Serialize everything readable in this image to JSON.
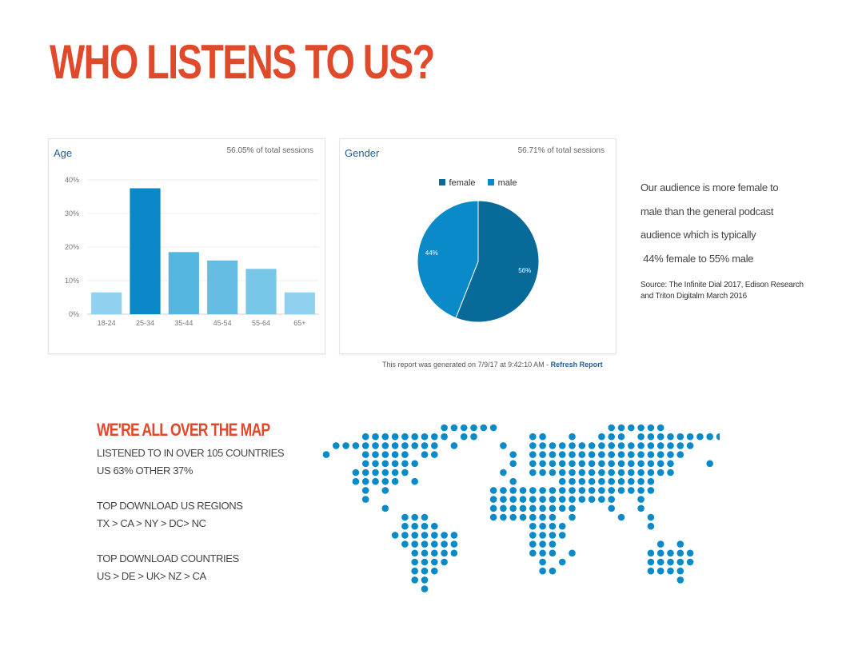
{
  "title": "WHO LISTENS TO US?",
  "age_card": {
    "title": "Age",
    "sessions": "56.05% of total sessions"
  },
  "gender_card": {
    "title": "Gender",
    "sessions": "56.71% of total sessions"
  },
  "chart_data": [
    {
      "type": "bar",
      "title": "Age",
      "categories": [
        "18-24",
        "25-34",
        "35-44",
        "45-54",
        "55-64",
        "65+"
      ],
      "values": [
        6.5,
        37.5,
        18.5,
        16,
        13.5,
        6.5
      ],
      "yticks": [
        "0%",
        "10%",
        "20%",
        "30%",
        "40%"
      ],
      "ylim": [
        0,
        40
      ],
      "grid": true,
      "colors": [
        "#8fd1ef",
        "#0a87c7",
        "#55b7df",
        "#65bde3",
        "#78c6e8",
        "#8fd1ef"
      ]
    },
    {
      "type": "pie",
      "title": "Gender",
      "legend_position": "top",
      "slices": [
        {
          "name": "female",
          "value": 56,
          "label": "56%",
          "color": "#076a98"
        },
        {
          "name": "male",
          "value": 44,
          "label": "44%",
          "color": "#0a8ac8"
        }
      ]
    }
  ],
  "report": {
    "text": "This report was generated on 7/9/17 at 9:42:10 AM - ",
    "link": "Refresh Report"
  },
  "insight": {
    "lines": [
      "Our audience is more female to",
      "male than the general podcast",
      "audience which is typically",
      " 44% female to 55% male"
    ],
    "source": "Source: The Infinite Dial 2017, Edison Research and Triton Digitalm March 2016"
  },
  "map_section": {
    "title": "WE'RE ALL OVER THE MAP",
    "lines": [
      "LISTENED TO IN OVER 105 COUNTRIES",
      "US 63% OTHER 37%",
      "",
      "TOP DOWNLOAD US REGIONS",
      "TX > CA > NY > DC> NC",
      "",
      "TOP DOWNLOAD COUNTRIES",
      "US > DE > UK> NZ > CA"
    ]
  },
  "colors": {
    "accent": "#e04a2b",
    "map_dot": "#0a8ac8",
    "link": "#1f5f97"
  }
}
